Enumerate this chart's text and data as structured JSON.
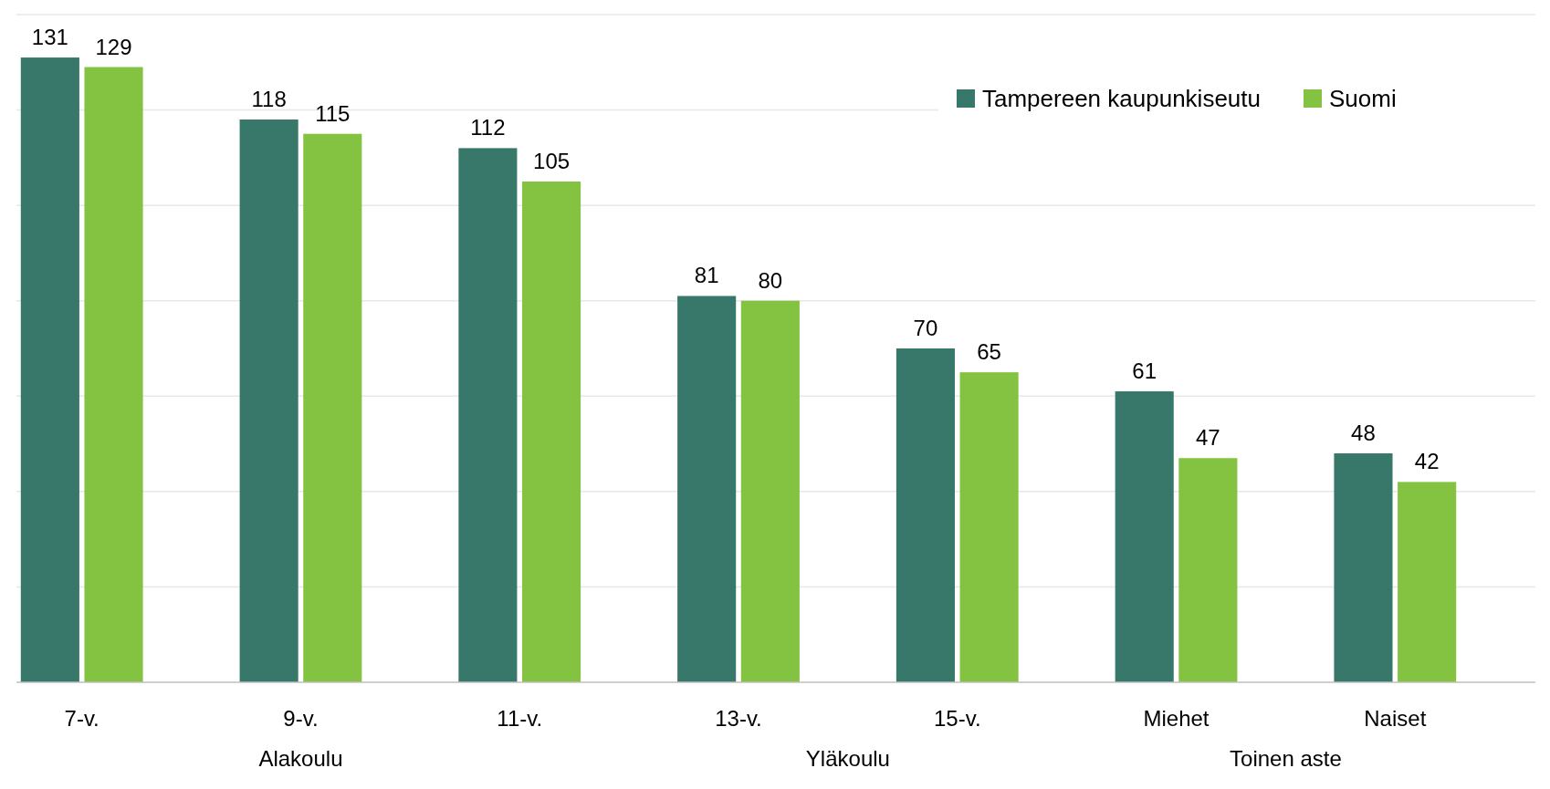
{
  "chart_data": {
    "type": "bar",
    "categories": [
      "7-v.",
      "9-v.",
      "11-v.",
      "13-v.",
      "15-v.",
      "Miehet",
      "Naiset"
    ],
    "series": [
      {
        "name": "Tampereen kaupunkiseutu",
        "color": "#37786b",
        "values": [
          131,
          118,
          112,
          81,
          70,
          61,
          48
        ]
      },
      {
        "name": "Suomi",
        "color": "#83c341",
        "values": [
          129,
          115,
          105,
          80,
          65,
          47,
          42
        ]
      }
    ],
    "ylim": [
      0,
      140
    ],
    "yticks": [
      {
        "value": 0,
        "label": null
      },
      {
        "value": 20,
        "label": null
      },
      {
        "value": 40,
        "label": null
      },
      {
        "value": 60,
        "label": null
      },
      {
        "value": 80,
        "label": null
      },
      {
        "value": 100,
        "label": null
      },
      {
        "value": 120,
        "label": null
      },
      {
        "value": 140,
        "label": null
      }
    ],
    "tick_labels": "x",
    "grid": "y",
    "legend": "top right",
    "data_labels": true,
    "annotations": [
      "Alakoulu",
      "Yläkoulu",
      "Toinen aste"
    ]
  }
}
